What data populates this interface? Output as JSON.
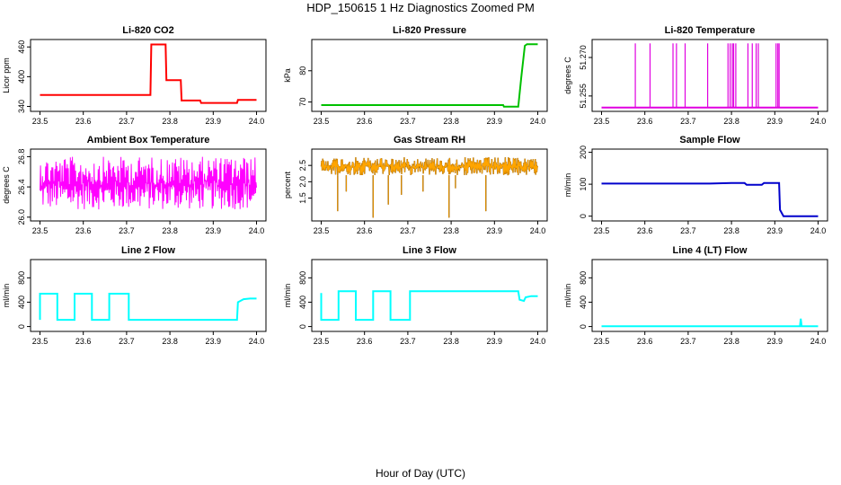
{
  "title": "HDP_150615  1 Hz Diagnostics Zoomed PM",
  "xlabel": "Hour of Day (UTC)",
  "chart_data": [
    {
      "type": "line",
      "title": "Li-820 CO2",
      "ylabel": "Licor ppm",
      "color": "#ff0000",
      "xlim": [
        23.5,
        24.0
      ],
      "ylim": [
        330,
        475
      ],
      "xticks": [
        "23.5",
        "23.6",
        "23.7",
        "23.8",
        "23.9",
        "24.0"
      ],
      "yticks": [
        "340",
        "400",
        "460"
      ],
      "series": [
        {
          "x": [
            23.5,
            23.755,
            23.757,
            23.79,
            23.792,
            23.825,
            23.827,
            23.87,
            23.872,
            23.955,
            23.957,
            24.0
          ],
          "y": [
            363,
            363,
            465,
            465,
            393,
            393,
            352,
            352,
            347,
            347,
            353,
            353
          ]
        }
      ]
    },
    {
      "type": "line",
      "title": "Li-820 Pressure",
      "ylabel": "kPa",
      "color": "#00c000",
      "xlim": [
        23.5,
        24.0
      ],
      "ylim": [
        67,
        90
      ],
      "xticks": [
        "23.5",
        "23.6",
        "23.7",
        "23.8",
        "23.9",
        "24.0"
      ],
      "yticks": [
        "70",
        "80"
      ],
      "series": [
        {
          "x": [
            23.5,
            23.92,
            23.922,
            23.955,
            23.962,
            23.97,
            23.975,
            24.0
          ],
          "y": [
            69,
            69,
            68.5,
            68.5,
            78,
            88,
            88.5,
            88.5
          ]
        }
      ]
    },
    {
      "type": "line",
      "title": "Li-820 Temperature",
      "ylabel": "degrees C",
      "color": "#e000e0",
      "xlim": [
        23.5,
        24.0
      ],
      "ylim": [
        51.249,
        51.277
      ],
      "xticks": [
        "23.5",
        "23.6",
        "23.7",
        "23.8",
        "23.9",
        "24.0"
      ],
      "yticks": [
        "51.255",
        "51.270"
      ],
      "series": [
        {
          "x": [
            23.5,
            24.0
          ],
          "y": [
            51.2505,
            51.2505
          ]
        }
      ],
      "spikes": [
        23.578,
        23.612,
        23.665,
        23.673,
        23.693,
        23.745,
        23.792,
        23.797,
        23.802,
        23.805,
        23.81,
        23.838,
        23.848,
        23.857,
        23.862,
        23.903,
        23.907,
        23.91
      ],
      "spike_top": 51.2755
    },
    {
      "type": "line",
      "title": "Ambient Box Temperature",
      "ylabel": "degrees C",
      "color": "#ff00ff",
      "xlim": [
        23.5,
        24.0
      ],
      "ylim": [
        25.95,
        26.9
      ],
      "xticks": [
        "23.5",
        "23.6",
        "23.7",
        "23.8",
        "23.9",
        "24.0"
      ],
      "yticks": [
        "26.0",
        "26.4",
        "26.8"
      ],
      "series": [
        {
          "x": [
            23.5,
            24.0
          ],
          "y": [
            26.45,
            26.45
          ]
        }
      ],
      "noise_band": [
        26.1,
        26.8
      ]
    },
    {
      "type": "scatter",
      "title": "Gas Stream RH",
      "ylabel": "percent",
      "color": "#ffa500",
      "edge_color": "#7a4a00",
      "xlim": [
        23.5,
        24.0
      ],
      "ylim": [
        0.8,
        3.0
      ],
      "xticks": [
        "23.5",
        "23.6",
        "23.7",
        "23.8",
        "23.9",
        "24.0"
      ],
      "yticks": [
        "1.5",
        "2.0",
        "2.5"
      ],
      "series": [
        {
          "x": [
            23.5,
            24.0
          ],
          "y": [
            2.5,
            2.5
          ]
        }
      ],
      "noise_band": [
        2.2,
        2.75
      ],
      "dips": [
        [
          23.538,
          1.1
        ],
        [
          23.558,
          1.7
        ],
        [
          23.62,
          0.9
        ],
        [
          23.655,
          1.3
        ],
        [
          23.685,
          1.6
        ],
        [
          23.735,
          1.7
        ],
        [
          23.795,
          0.9
        ],
        [
          23.81,
          1.8
        ],
        [
          23.88,
          1.1
        ]
      ]
    },
    {
      "type": "line",
      "title": "Sample Flow",
      "ylabel": "ml/min",
      "color": "#0000cc",
      "xlim": [
        23.5,
        24.0
      ],
      "ylim": [
        -15,
        210
      ],
      "xticks": [
        "23.5",
        "23.6",
        "23.7",
        "23.8",
        "23.9",
        "24.0"
      ],
      "yticks": [
        "0",
        "100",
        "200"
      ],
      "series": [
        {
          "x": [
            23.5,
            23.75,
            23.8,
            23.83,
            23.835,
            23.87,
            23.875,
            23.91,
            23.912,
            23.92,
            24.0
          ],
          "y": [
            102,
            102,
            104,
            104,
            98,
            98,
            104,
            104,
            20,
            0,
            0
          ]
        }
      ]
    },
    {
      "type": "line",
      "title": "Line 2 Flow",
      "ylabel": "ml/min",
      "color": "#00ffff",
      "xlim": [
        23.5,
        24.0
      ],
      "ylim": [
        -80,
        1100
      ],
      "xticks": [
        "23.5",
        "23.6",
        "23.7",
        "23.8",
        "23.9",
        "24.0"
      ],
      "yticks": [
        "0",
        "400",
        "800"
      ],
      "series": [
        {
          "x": [
            23.5,
            23.5,
            23.54,
            23.54,
            23.58,
            23.58,
            23.62,
            23.62,
            23.66,
            23.66,
            23.705,
            23.705,
            23.955,
            23.957,
            23.97,
            23.985,
            24.0
          ],
          "y": [
            110,
            540,
            540,
            110,
            110,
            540,
            540,
            110,
            110,
            540,
            540,
            110,
            110,
            400,
            450,
            460,
            460
          ]
        }
      ]
    },
    {
      "type": "line",
      "title": "Line 3 Flow",
      "ylabel": "ml/min",
      "color": "#00ffff",
      "xlim": [
        23.5,
        24.0
      ],
      "ylim": [
        -80,
        1100
      ],
      "xticks": [
        "23.5",
        "23.6",
        "23.7",
        "23.8",
        "23.9",
        "24.0"
      ],
      "yticks": [
        "0",
        "400",
        "800"
      ],
      "series": [
        {
          "x": [
            23.5,
            23.5,
            23.51,
            23.51,
            23.54,
            23.54,
            23.58,
            23.58,
            23.62,
            23.62,
            23.66,
            23.66,
            23.705,
            23.705,
            23.955,
            23.958,
            23.968,
            23.972,
            23.985,
            24.0
          ],
          "y": [
            550,
            110,
            110,
            110,
            110,
            580,
            580,
            110,
            110,
            580,
            580,
            110,
            110,
            580,
            580,
            440,
            420,
            480,
            500,
            500
          ]
        }
      ]
    },
    {
      "type": "line",
      "title": "Line 4 (LT) Flow",
      "ylabel": "ml/min",
      "color": "#00ffff",
      "xlim": [
        23.5,
        24.0
      ],
      "ylim": [
        -80,
        1100
      ],
      "xticks": [
        "23.5",
        "23.6",
        "23.7",
        "23.8",
        "23.9",
        "24.0"
      ],
      "yticks": [
        "0",
        "400",
        "800"
      ],
      "series": [
        {
          "x": [
            23.5,
            23.958,
            23.96,
            23.962,
            24.0
          ],
          "y": [
            5,
            5,
            130,
            5,
            5
          ]
        }
      ]
    }
  ]
}
